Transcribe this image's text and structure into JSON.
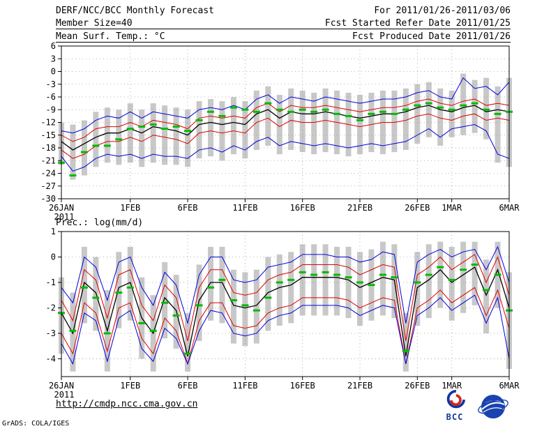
{
  "header": {
    "title": "DERF/NCC/BCC Monthly Forecast",
    "date_range": "For 2011/01/26-2011/03/06",
    "member_size": "Member Size=40",
    "fcst_started": "Fcst Started Refer Date 2011/01/25",
    "fcst_produced": "Fcst Produced Date 2011/01/26"
  },
  "footer": {
    "url": "http://cmdp.ncc.cma.gov.cn",
    "grads_credit": "GrADS: COLA/IGES",
    "bcc_label": "BCC"
  },
  "colors": {
    "max_min_line": "#0000dd",
    "quartile_line": "#dd0000",
    "median_line": "#000000",
    "observation_dash": "#00bb00",
    "spread_bar": "#c8c8c8",
    "gridline": "#9a9a9a",
    "logo_blue": "#1535a0",
    "logo_red": "#d32b1f"
  },
  "chart_data": [
    {
      "type": "line",
      "title": "Mean Surf. Temp.: °C",
      "x_sub_label": "2011",
      "n_days": 40,
      "ylim": [
        -30,
        6
      ],
      "yticks": [
        6,
        3,
        0,
        -3,
        -6,
        -9,
        -12,
        -15,
        -18,
        -21,
        -24,
        -27,
        -30
      ],
      "xticks": [
        {
          "label": "26JAN",
          "day": 1
        },
        {
          "label": "1FEB",
          "day": 7
        },
        {
          "label": "6FEB",
          "day": 12
        },
        {
          "label": "11FEB",
          "day": 17
        },
        {
          "label": "16FEB",
          "day": 22
        },
        {
          "label": "21FEB",
          "day": 27
        },
        {
          "label": "26FEB",
          "day": 32
        },
        {
          "label": "1MAR",
          "day": 35
        },
        {
          "label": "6MAR",
          "day": 40
        }
      ],
      "series": [
        {
          "name": "ensemble-spread",
          "type": "band",
          "color": "#c8c8c8",
          "upper": [
            -12,
            -12.5,
            -11.5,
            -9.5,
            -8.5,
            -9,
            -7.5,
            -9,
            -7.5,
            -8,
            -8.5,
            -9,
            -7,
            -6.5,
            -7,
            -6,
            -7,
            -4.5,
            -3.5,
            -5.5,
            -4,
            -4.5,
            -5,
            -4,
            -4.5,
            -5,
            -5.5,
            -5,
            -4.5,
            -4.5,
            -4,
            -3,
            -2.5,
            -4,
            -4.5,
            -0.5,
            -2,
            -1.5,
            -3.5,
            -1.5
          ],
          "lower": [
            -22,
            -25.5,
            -24.5,
            -22.5,
            -21.5,
            -22,
            -21.5,
            -22.5,
            -21.5,
            -22,
            -22,
            -22.5,
            -20.5,
            -20,
            -21,
            -19.5,
            -20.5,
            -18.5,
            -17.5,
            -19.5,
            -18.5,
            -19,
            -19.5,
            -19,
            -19.5,
            -20,
            -19.5,
            -19,
            -19.5,
            -19,
            -18.5,
            -17,
            -15.5,
            -17.5,
            -15.5,
            -15,
            -14.5,
            -16,
            -21.5,
            -22.5
          ]
        },
        {
          "name": "ensemble-max",
          "type": "line",
          "color": "#0000dd",
          "width": 1,
          "values": [
            -14,
            -14.5,
            -13.5,
            -11.5,
            -10.5,
            -11,
            -9.5,
            -11,
            -9.5,
            -10,
            -10.5,
            -11,
            -9,
            -8.5,
            -9,
            -8,
            -9,
            -6.5,
            -5.5,
            -7.5,
            -6,
            -6.5,
            -7,
            -6,
            -6.5,
            -7,
            -7.5,
            -7,
            -6.5,
            -6.5,
            -6,
            -5,
            -4.5,
            -6,
            -6.5,
            -1.5,
            -4,
            -3.5,
            -5.5,
            -2.5
          ]
        },
        {
          "name": "upper-quartile",
          "type": "line",
          "color": "#dd0000",
          "width": 1,
          "values": [
            -15,
            -16.5,
            -15.5,
            -13.5,
            -13,
            -13,
            -12,
            -13,
            -11.5,
            -12,
            -12.5,
            -13.5,
            -11,
            -10.5,
            -11,
            -10.5,
            -11,
            -8.5,
            -7.5,
            -9.5,
            -8,
            -8.5,
            -8.5,
            -8,
            -8.5,
            -9,
            -9.5,
            -9,
            -8.5,
            -8.5,
            -8,
            -7,
            -6.5,
            -7.5,
            -8,
            -7,
            -6.5,
            -8,
            -7.5,
            -8
          ]
        },
        {
          "name": "ensemble-median",
          "type": "line",
          "color": "#000000",
          "width": 1.3,
          "values": [
            -16.5,
            -18.5,
            -17,
            -15.5,
            -14.5,
            -14.5,
            -13.5,
            -14.5,
            -13,
            -13.5,
            -14,
            -15,
            -12.5,
            -12,
            -12.5,
            -12,
            -12.5,
            -10,
            -9,
            -11,
            -9.5,
            -10,
            -10,
            -9.5,
            -10,
            -10.5,
            -11,
            -10.5,
            -10,
            -10,
            -9.5,
            -8.5,
            -8,
            -9,
            -9.5,
            -8.5,
            -8,
            -9.5,
            -9,
            -9.5
          ]
        },
        {
          "name": "lower-quartile",
          "type": "line",
          "color": "#dd0000",
          "width": 1,
          "values": [
            -18.5,
            -20.5,
            -19.5,
            -17.5,
            -16.5,
            -16.5,
            -15.5,
            -16.5,
            -15,
            -15.5,
            -16,
            -17,
            -14.5,
            -14,
            -14.5,
            -14,
            -14.5,
            -12,
            -11,
            -13,
            -11.5,
            -12,
            -12,
            -11.5,
            -12,
            -12.5,
            -13,
            -12.5,
            -12,
            -12,
            -11.5,
            -10.5,
            -10,
            -11,
            -11.5,
            -10.5,
            -10,
            -11.5,
            -11,
            -11.5
          ]
        },
        {
          "name": "ensemble-min",
          "type": "line",
          "color": "#0000dd",
          "width": 1,
          "values": [
            -20,
            -23.5,
            -22.5,
            -20.5,
            -19.5,
            -20,
            -19.5,
            -20.5,
            -19.5,
            -20,
            -20,
            -20.5,
            -18.5,
            -18,
            -19,
            -17.5,
            -18.5,
            -16.5,
            -15.5,
            -17.5,
            -16.5,
            -17,
            -17.5,
            -17,
            -17.5,
            -18,
            -17.5,
            -17,
            -17.5,
            -17,
            -16.5,
            -15,
            -13.5,
            -15.5,
            -13.5,
            -13,
            -12.5,
            -14,
            -19.5,
            -20.5
          ]
        },
        {
          "name": "observation-dash",
          "type": "dash",
          "color": "#00bb00",
          "values": [
            -21.5,
            -24.5,
            -19,
            -17.5,
            -17.5,
            -16,
            -13.5,
            -13,
            -12.5,
            -13.5,
            -13,
            -14,
            -11.5,
            -9.5,
            -10.5,
            -8.5,
            -9,
            -9.5,
            -7.5,
            -9,
            -9.5,
            -9,
            -9.5,
            -9,
            -10,
            -10.5,
            -11.5,
            -10,
            -9.5,
            -10,
            -9,
            -8,
            -7.5,
            -8.5,
            -9,
            -8,
            -7.5,
            -9,
            -10,
            -9.5
          ]
        }
      ]
    },
    {
      "type": "line",
      "title": "Prec.: log(mm/d)",
      "x_sub_label": "2011",
      "n_days": 40,
      "ylim": [
        -4.7,
        1
      ],
      "yticks": [
        1,
        0,
        -1,
        -2,
        -3,
        -4
      ],
      "xticks": [
        {
          "label": "26JAN",
          "day": 1
        },
        {
          "label": "1FEB",
          "day": 7
        },
        {
          "label": "6FEB",
          "day": 12
        },
        {
          "label": "11FEB",
          "day": 17
        },
        {
          "label": "16FEB",
          "day": 22
        },
        {
          "label": "21FEB",
          "day": 27
        },
        {
          "label": "26FEB",
          "day": 32
        },
        {
          "label": "1MAR",
          "day": 35
        },
        {
          "label": "6MAR",
          "day": 40
        }
      ],
      "series": [
        {
          "name": "ensemble-spread",
          "type": "band",
          "color": "#c8c8c8",
          "upper": [
            -0.8,
            -1.4,
            0.4,
            0,
            -1.3,
            0.2,
            0.4,
            -0.8,
            -1.5,
            -0.2,
            -0.7,
            -2.2,
            -0.3,
            0.4,
            0.4,
            -0.5,
            -0.6,
            -0.5,
            0,
            0.1,
            0.2,
            0.5,
            0.5,
            0.5,
            0.4,
            0.4,
            0.2,
            0.3,
            0.6,
            0.5,
            -2.2,
            0.2,
            0.5,
            0.6,
            0.4,
            0.6,
            0.6,
            -0.1,
            0.6,
            -0.6
          ],
          "lower": [
            -3.8,
            -4.5,
            -2.6,
            -2.9,
            -4.5,
            -2.8,
            -2.5,
            -4,
            -4.5,
            -3.2,
            -3.6,
            -4.5,
            -3.3,
            -2.5,
            -2.6,
            -3.4,
            -3.5,
            -3.4,
            -2.9,
            -2.7,
            -2.6,
            -2.3,
            -2.3,
            -2.3,
            -2.3,
            -2.4,
            -2.7,
            -2.5,
            -2.3,
            -2.4,
            -4.5,
            -2.7,
            -2.4,
            -2,
            -2.5,
            -2.2,
            -1.9,
            -3,
            -2,
            -4.4
          ]
        },
        {
          "name": "ensemble-max",
          "type": "line",
          "color": "#0000dd",
          "width": 1,
          "values": [
            -1.2,
            -1.8,
            0,
            -0.4,
            -1.7,
            -0.2,
            0,
            -1.2,
            -1.9,
            -0.6,
            -1.1,
            -2.6,
            -0.7,
            0,
            0,
            -0.9,
            -1,
            -0.9,
            -0.4,
            -0.3,
            -0.2,
            0.1,
            0.1,
            0.1,
            0,
            0,
            -0.2,
            -0.1,
            0.2,
            0.1,
            -2.6,
            -0.2,
            0.1,
            0.3,
            0,
            0.2,
            0.3,
            -0.5,
            0.4,
            -1
          ]
        },
        {
          "name": "upper-quartile",
          "type": "line",
          "color": "#dd0000",
          "width": 1,
          "values": [
            -1.7,
            -2.5,
            -0.5,
            -0.9,
            -2.4,
            -0.7,
            -0.5,
            -1.9,
            -2.5,
            -1.1,
            -1.6,
            -3.3,
            -1.2,
            -0.5,
            -0.5,
            -1.4,
            -1.5,
            -1.4,
            -0.9,
            -0.7,
            -0.6,
            -0.3,
            -0.3,
            -0.3,
            -0.3,
            -0.4,
            -0.7,
            -0.5,
            -0.3,
            -0.4,
            -3.3,
            -0.7,
            -0.4,
            0,
            -0.5,
            -0.2,
            0.1,
            -1,
            0,
            -1.5
          ]
        },
        {
          "name": "ensemble-median",
          "type": "line",
          "color": "#000000",
          "width": 1.3,
          "values": [
            -2.2,
            -3,
            -1,
            -1.4,
            -2.9,
            -1.2,
            -1,
            -2.4,
            -3,
            -1.6,
            -2.1,
            -3.9,
            -1.7,
            -1,
            -1,
            -1.9,
            -2,
            -1.9,
            -1.4,
            -1.2,
            -1.1,
            -0.8,
            -0.8,
            -0.8,
            -0.8,
            -0.9,
            -1.2,
            -1,
            -0.8,
            -0.9,
            -3.9,
            -1.2,
            -0.9,
            -0.5,
            -1,
            -0.7,
            -0.4,
            -1.5,
            -0.5,
            -2
          ]
        },
        {
          "name": "lower-quartile",
          "type": "line",
          "color": "#dd0000",
          "width": 1,
          "values": [
            -3,
            -3.8,
            -1.8,
            -2.2,
            -3.7,
            -2,
            -1.8,
            -3.2,
            -3.8,
            -2.4,
            -2.9,
            -4.2,
            -2.5,
            -1.8,
            -1.8,
            -2.7,
            -2.8,
            -2.7,
            -2.2,
            -2,
            -1.9,
            -1.6,
            -1.6,
            -1.6,
            -1.6,
            -1.7,
            -2,
            -1.8,
            -1.6,
            -1.7,
            -4.2,
            -2,
            -1.7,
            -1.3,
            -1.8,
            -1.5,
            -1.2,
            -2.3,
            -1.3,
            -2.8
          ]
        },
        {
          "name": "ensemble-min",
          "type": "line",
          "color": "#0000dd",
          "width": 1,
          "values": [
            -3.4,
            -4.2,
            -2.2,
            -2.5,
            -4.1,
            -2.4,
            -2.1,
            -3.6,
            -4.1,
            -2.8,
            -3.2,
            -4.2,
            -2.9,
            -2.1,
            -2.2,
            -3,
            -3.1,
            -3,
            -2.5,
            -2.3,
            -2.2,
            -1.9,
            -1.9,
            -1.9,
            -1.9,
            -2,
            -2.3,
            -2.1,
            -1.9,
            -2,
            -4.2,
            -2.3,
            -2,
            -1.6,
            -2.1,
            -1.8,
            -1.5,
            -2.6,
            -1.6,
            -4
          ]
        },
        {
          "name": "observation-dash",
          "type": "dash",
          "color": "#00bb00",
          "values": [
            -2.2,
            -2.9,
            -1.2,
            -1.6,
            -3,
            -1.4,
            -1.2,
            -2.6,
            -2.9,
            -1.8,
            -2.3,
            -3.8,
            -1.9,
            -1.2,
            -0.9,
            -1.7,
            -1.9,
            -2.1,
            -1.6,
            -1,
            -0.9,
            -0.6,
            -0.7,
            -0.6,
            -0.7,
            -0.8,
            -1,
            -1.1,
            -0.7,
            -0.8,
            -3.7,
            -1,
            -0.7,
            -0.4,
            -0.9,
            -0.5,
            -0.3,
            -1.3,
            -0.7,
            -2.1
          ]
        }
      ]
    }
  ]
}
